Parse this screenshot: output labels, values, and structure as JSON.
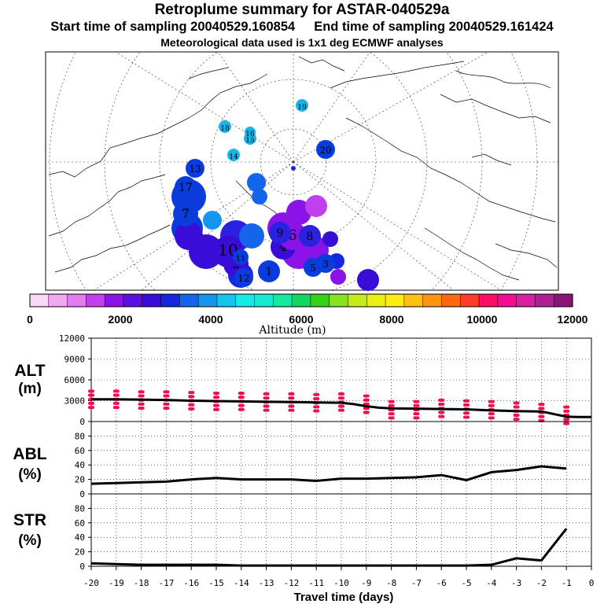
{
  "header": {
    "title": "Retroplume summary for ASTAR-040529a",
    "start_label": "Start time of sampling 20040529.160854",
    "end_label": "End time of sampling 20040529.161424",
    "met_note": "Meteorological data used is 1x1 deg ECMWF analyses"
  },
  "map": {
    "plume_clusters": [
      {
        "label": "1",
        "color": "#0a3cdc"
      },
      {
        "label": "2",
        "color": "#3a0cd8"
      },
      {
        "label": "3",
        "color": "#0a3cdc"
      },
      {
        "label": "4",
        "color": "#3a0cd8"
      },
      {
        "label": "5",
        "color": "#0a3cdc"
      },
      {
        "label": "6",
        "color": "#8a14e8"
      },
      {
        "label": "7",
        "color": "#0a3cdc"
      },
      {
        "label": "8",
        "color": "#2a22e0"
      },
      {
        "label": "9",
        "color": "#2a22e0"
      },
      {
        "label": "10",
        "color": "#3a0cd8"
      },
      {
        "label": "11",
        "color": "#0a3cdc"
      },
      {
        "label": "12",
        "color": "#0a3cdc"
      },
      {
        "label": "13",
        "color": "#0a3cdc"
      },
      {
        "label": "14",
        "color": "#1ab4e8"
      },
      {
        "label": "15",
        "color": "#1ab4e8"
      },
      {
        "label": "16",
        "color": "#1ab4e8"
      },
      {
        "label": "17",
        "color": "#0a3cdc"
      },
      {
        "label": "18",
        "color": "#1ab4e8"
      },
      {
        "label": "19",
        "color": "#1ab4e8"
      },
      {
        "label": "20",
        "color": "#0a3cdc"
      }
    ]
  },
  "colorbar": {
    "colors": [
      "#fbd8f8",
      "#f4a8f0",
      "#e07ef0",
      "#c040f0",
      "#8a14e8",
      "#5a10e0",
      "#3a0cd8",
      "#1428e0",
      "#1464ec",
      "#1496ee",
      "#12c6ec",
      "#16eae8",
      "#16ead0",
      "#12eaa0",
      "#12d860",
      "#34d414",
      "#84e41e",
      "#c4ec18",
      "#ecf010",
      "#ffee10",
      "#ffc010",
      "#ff9410",
      "#ff6a10",
      "#ff3c2a",
      "#ff0c64",
      "#f40c94",
      "#d8209e",
      "#b02094",
      "#8c1478"
    ],
    "ticks": [
      "0",
      "2000",
      "4000",
      "6000",
      "8000",
      "10000",
      "12000"
    ],
    "title": "Altitude (m)"
  },
  "axes": {
    "xlabel": "Travel time (days)",
    "xticks": [
      "-20",
      "-19",
      "-18",
      "-17",
      "-16",
      "-15",
      "-14",
      "-13",
      "-12",
      "-11",
      "-10",
      "-9",
      "-8",
      "-7",
      "-6",
      "-5",
      "-4",
      "-3",
      "-2",
      "-1",
      "0"
    ],
    "alt_label_1": "ALT",
    "alt_label_2": "(m)",
    "abl_label_1": "ABL",
    "abl_label_2": "(%)",
    "str_label_1": "STR",
    "str_label_2": "(%)"
  },
  "chart_data": [
    {
      "type": "line",
      "title": "ALT (m)",
      "ylabel": "ALT (m)",
      "xlabel": "Travel time (days)",
      "xlim": [
        -20,
        0
      ],
      "ylim": [
        0,
        12000
      ],
      "yticks": [
        "0",
        "3000",
        "6000",
        "9000",
        "12000"
      ],
      "series": [
        {
          "name": "mean altitude",
          "x": [
            -20,
            -19,
            -18,
            -17,
            -16,
            -15,
            -14,
            -13,
            -12,
            -11,
            -10,
            -9.5,
            -9,
            -8.5,
            -8,
            -7,
            -6,
            -5,
            -4,
            -3,
            -2,
            -1,
            -0.5,
            0
          ],
          "y": [
            3200,
            3200,
            3150,
            3100,
            3000,
            2950,
            2900,
            2850,
            2800,
            2750,
            2700,
            2500,
            2200,
            2000,
            1900,
            1850,
            1800,
            1750,
            1600,
            1500,
            1450,
            700,
            650,
            650
          ]
        },
        {
          "name": "particle altitude spread",
          "x": [
            -20,
            -19,
            -18,
            -17,
            -16,
            -15,
            -14,
            -13,
            -12,
            -11,
            -10,
            -9,
            -8,
            -7,
            -6,
            -5,
            -4,
            -3,
            -2,
            -1
          ],
          "y": [
            3200,
            3200,
            3100,
            3100,
            3000,
            2900,
            2900,
            2800,
            2800,
            2700,
            2800,
            2500,
            1700,
            1700,
            1900,
            1800,
            1700,
            1500,
            1300,
            900
          ]
        }
      ]
    },
    {
      "type": "line",
      "title": "ABL (%)",
      "ylabel": "ABL (%)",
      "xlim": [
        -20,
        0
      ],
      "ylim": [
        0,
        100
      ],
      "yticks": [
        "0",
        "20",
        "40",
        "60",
        "80"
      ],
      "series": [
        {
          "name": "ABL fraction",
          "x": [
            -20,
            -19,
            -18,
            -17,
            -16,
            -15,
            -14,
            -13,
            -12,
            -11,
            -10,
            -9,
            -8,
            -7,
            -6,
            -5,
            -4,
            -3,
            -2,
            -1
          ],
          "y": [
            14,
            15,
            16,
            17,
            20,
            22,
            20,
            20,
            20,
            18,
            21,
            21,
            22,
            23,
            26,
            19,
            30,
            33,
            38,
            35
          ]
        }
      ]
    },
    {
      "type": "line",
      "title": "STR (%)",
      "ylabel": "STR (%)",
      "xlabel": "Travel time (days)",
      "xlim": [
        -20,
        0
      ],
      "ylim": [
        0,
        100
      ],
      "yticks": [
        "0",
        "20",
        "40",
        "60",
        "80"
      ],
      "series": [
        {
          "name": "STR fraction",
          "x": [
            -20,
            -19,
            -18,
            -17,
            -16,
            -15,
            -14,
            -13,
            -12,
            -11,
            -10,
            -9,
            -8,
            -7,
            -6,
            -5,
            -4,
            -3,
            -2,
            -1
          ],
          "y": [
            4,
            3,
            2,
            2,
            2,
            2,
            1,
            1,
            1,
            1,
            1,
            1,
            1,
            1,
            1,
            1,
            2,
            11,
            8,
            52
          ]
        }
      ]
    }
  ]
}
